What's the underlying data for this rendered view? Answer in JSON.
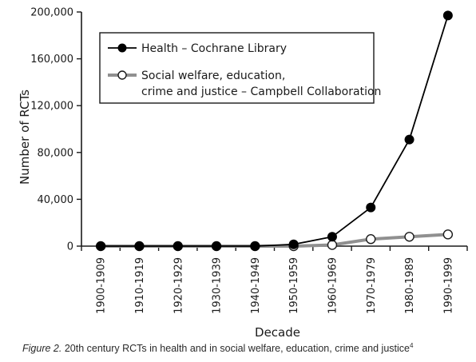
{
  "chart_data": {
    "type": "line",
    "categories": [
      "1900-1909",
      "1910-1919",
      "1920-1929",
      "1930-1939",
      "1940-1949",
      "1950-1959",
      "1960-1969",
      "1970-1979",
      "1980-1989",
      "1990-1999"
    ],
    "series": [
      {
        "name": "Health – Cochrane Library",
        "marker": "filled-circle",
        "color": "#000000",
        "values": [
          0,
          0,
          0,
          0,
          0,
          1500,
          8000,
          33000,
          91000,
          197000
        ]
      },
      {
        "name_lines": [
          "Social welfare, education,",
          "crime and justice – Campbell Collaboration"
        ],
        "marker": "open-circle",
        "color": "#909090",
        "values": [
          0,
          0,
          0,
          0,
          0,
          0,
          1000,
          6000,
          8000,
          10000
        ]
      }
    ],
    "xlabel": "Decade",
    "ylabel": "Number of RCTs",
    "ylim": [
      0,
      200000
    ],
    "yticks": [
      "0",
      "40,000",
      "80,000",
      "120,000",
      "160,000",
      "200,000"
    ],
    "ytick_values": [
      0,
      40000,
      80000,
      120000,
      160000,
      200000
    ],
    "grid": false,
    "legend_position": "top-left"
  },
  "caption": {
    "label": "Figure 2.",
    "text": " 20th century RCTs in health and in social welfare, education, crime and justice",
    "ref": "4"
  }
}
